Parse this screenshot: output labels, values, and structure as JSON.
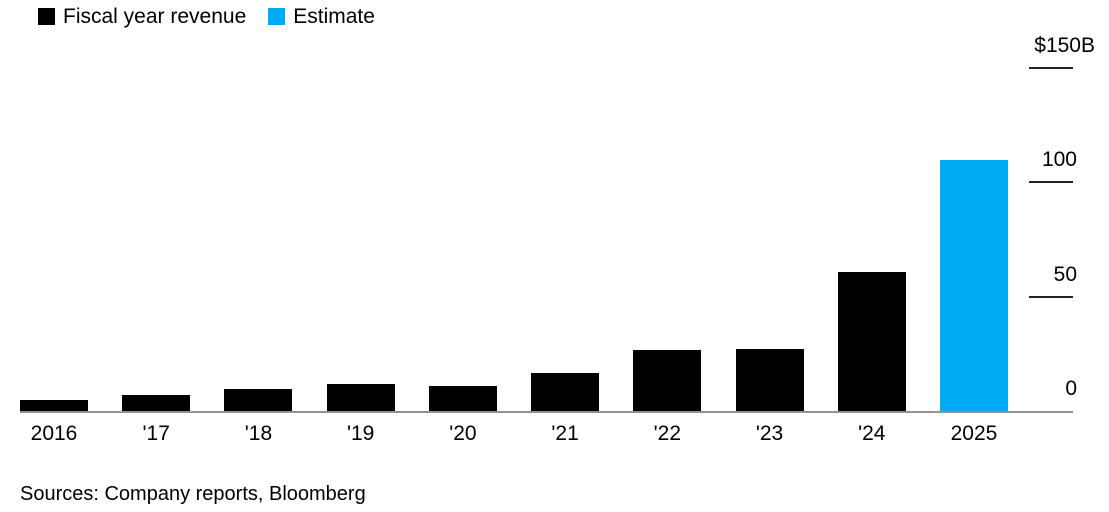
{
  "legend": {
    "items": [
      {
        "label": "Fiscal year revenue",
        "color": "#000000"
      },
      {
        "label": "Estimate",
        "color": "#00A9F4"
      }
    ]
  },
  "chart_data": {
    "type": "bar",
    "title": "",
    "unit": "USD billions",
    "categories": [
      "2016",
      "'17",
      "'18",
      "'19",
      "'20",
      "'21",
      "'22",
      "'23",
      "'24",
      "2025"
    ],
    "series": [
      {
        "name": "Fiscal year revenue",
        "color": "#000000",
        "values": [
          5.0,
          6.9,
          9.7,
          11.7,
          10.9,
          16.7,
          26.9,
          27.0,
          60.9,
          null
        ]
      },
      {
        "name": "Estimate",
        "color": "#00A9F4",
        "values": [
          null,
          null,
          null,
          null,
          null,
          null,
          null,
          null,
          null,
          110
        ]
      }
    ],
    "ylim": [
      0,
      150
    ],
    "yticks": [
      {
        "label": "$150B",
        "value": 150
      },
      {
        "label": "100",
        "value": 100
      },
      {
        "label": "50",
        "value": 50
      },
      {
        "label": "0",
        "value": 0
      }
    ],
    "grid": false,
    "legend_position": "top-left",
    "axis_line_color": "#8f9194",
    "tick_line_color": "#232323"
  },
  "footer": {
    "sources": "Sources: Company reports, Bloomberg"
  }
}
